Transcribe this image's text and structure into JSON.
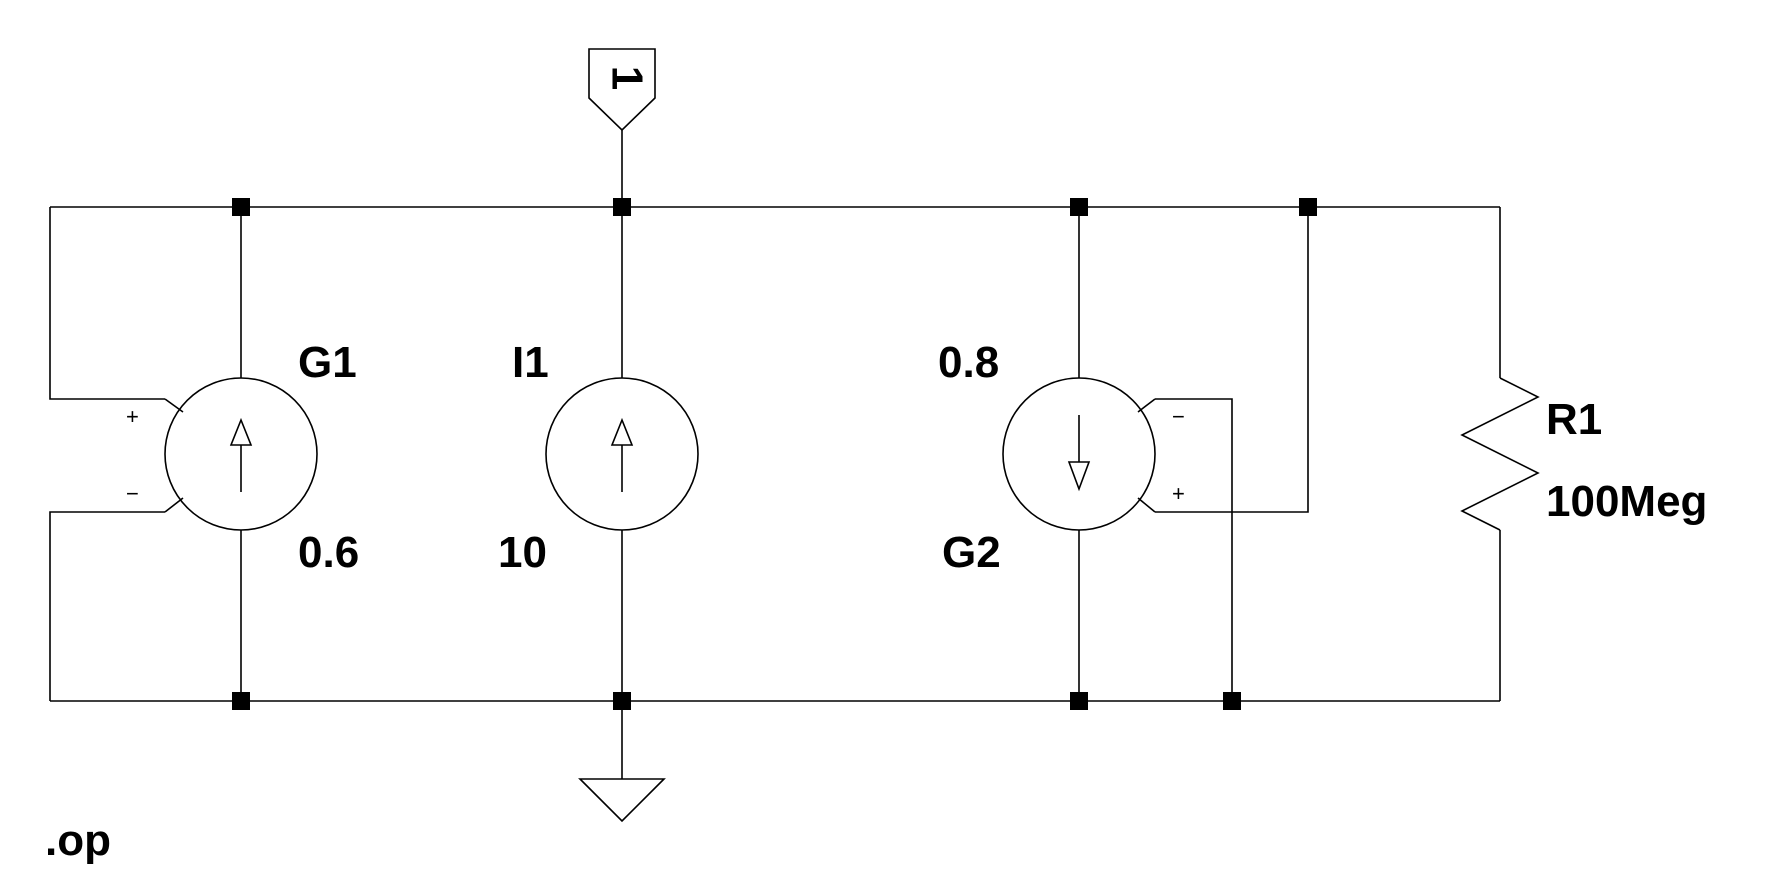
{
  "netlabel": {
    "text": "1"
  },
  "components": {
    "G1": {
      "name": "G1",
      "value": "0.6",
      "plus": "+",
      "minus": "−"
    },
    "I1": {
      "name": "I1",
      "value": "10"
    },
    "G2": {
      "name": "G2",
      "value": "0.8",
      "plus": "+",
      "minus": "−"
    },
    "R1": {
      "name": "R1",
      "value": "100Meg"
    }
  },
  "directive": ".op"
}
